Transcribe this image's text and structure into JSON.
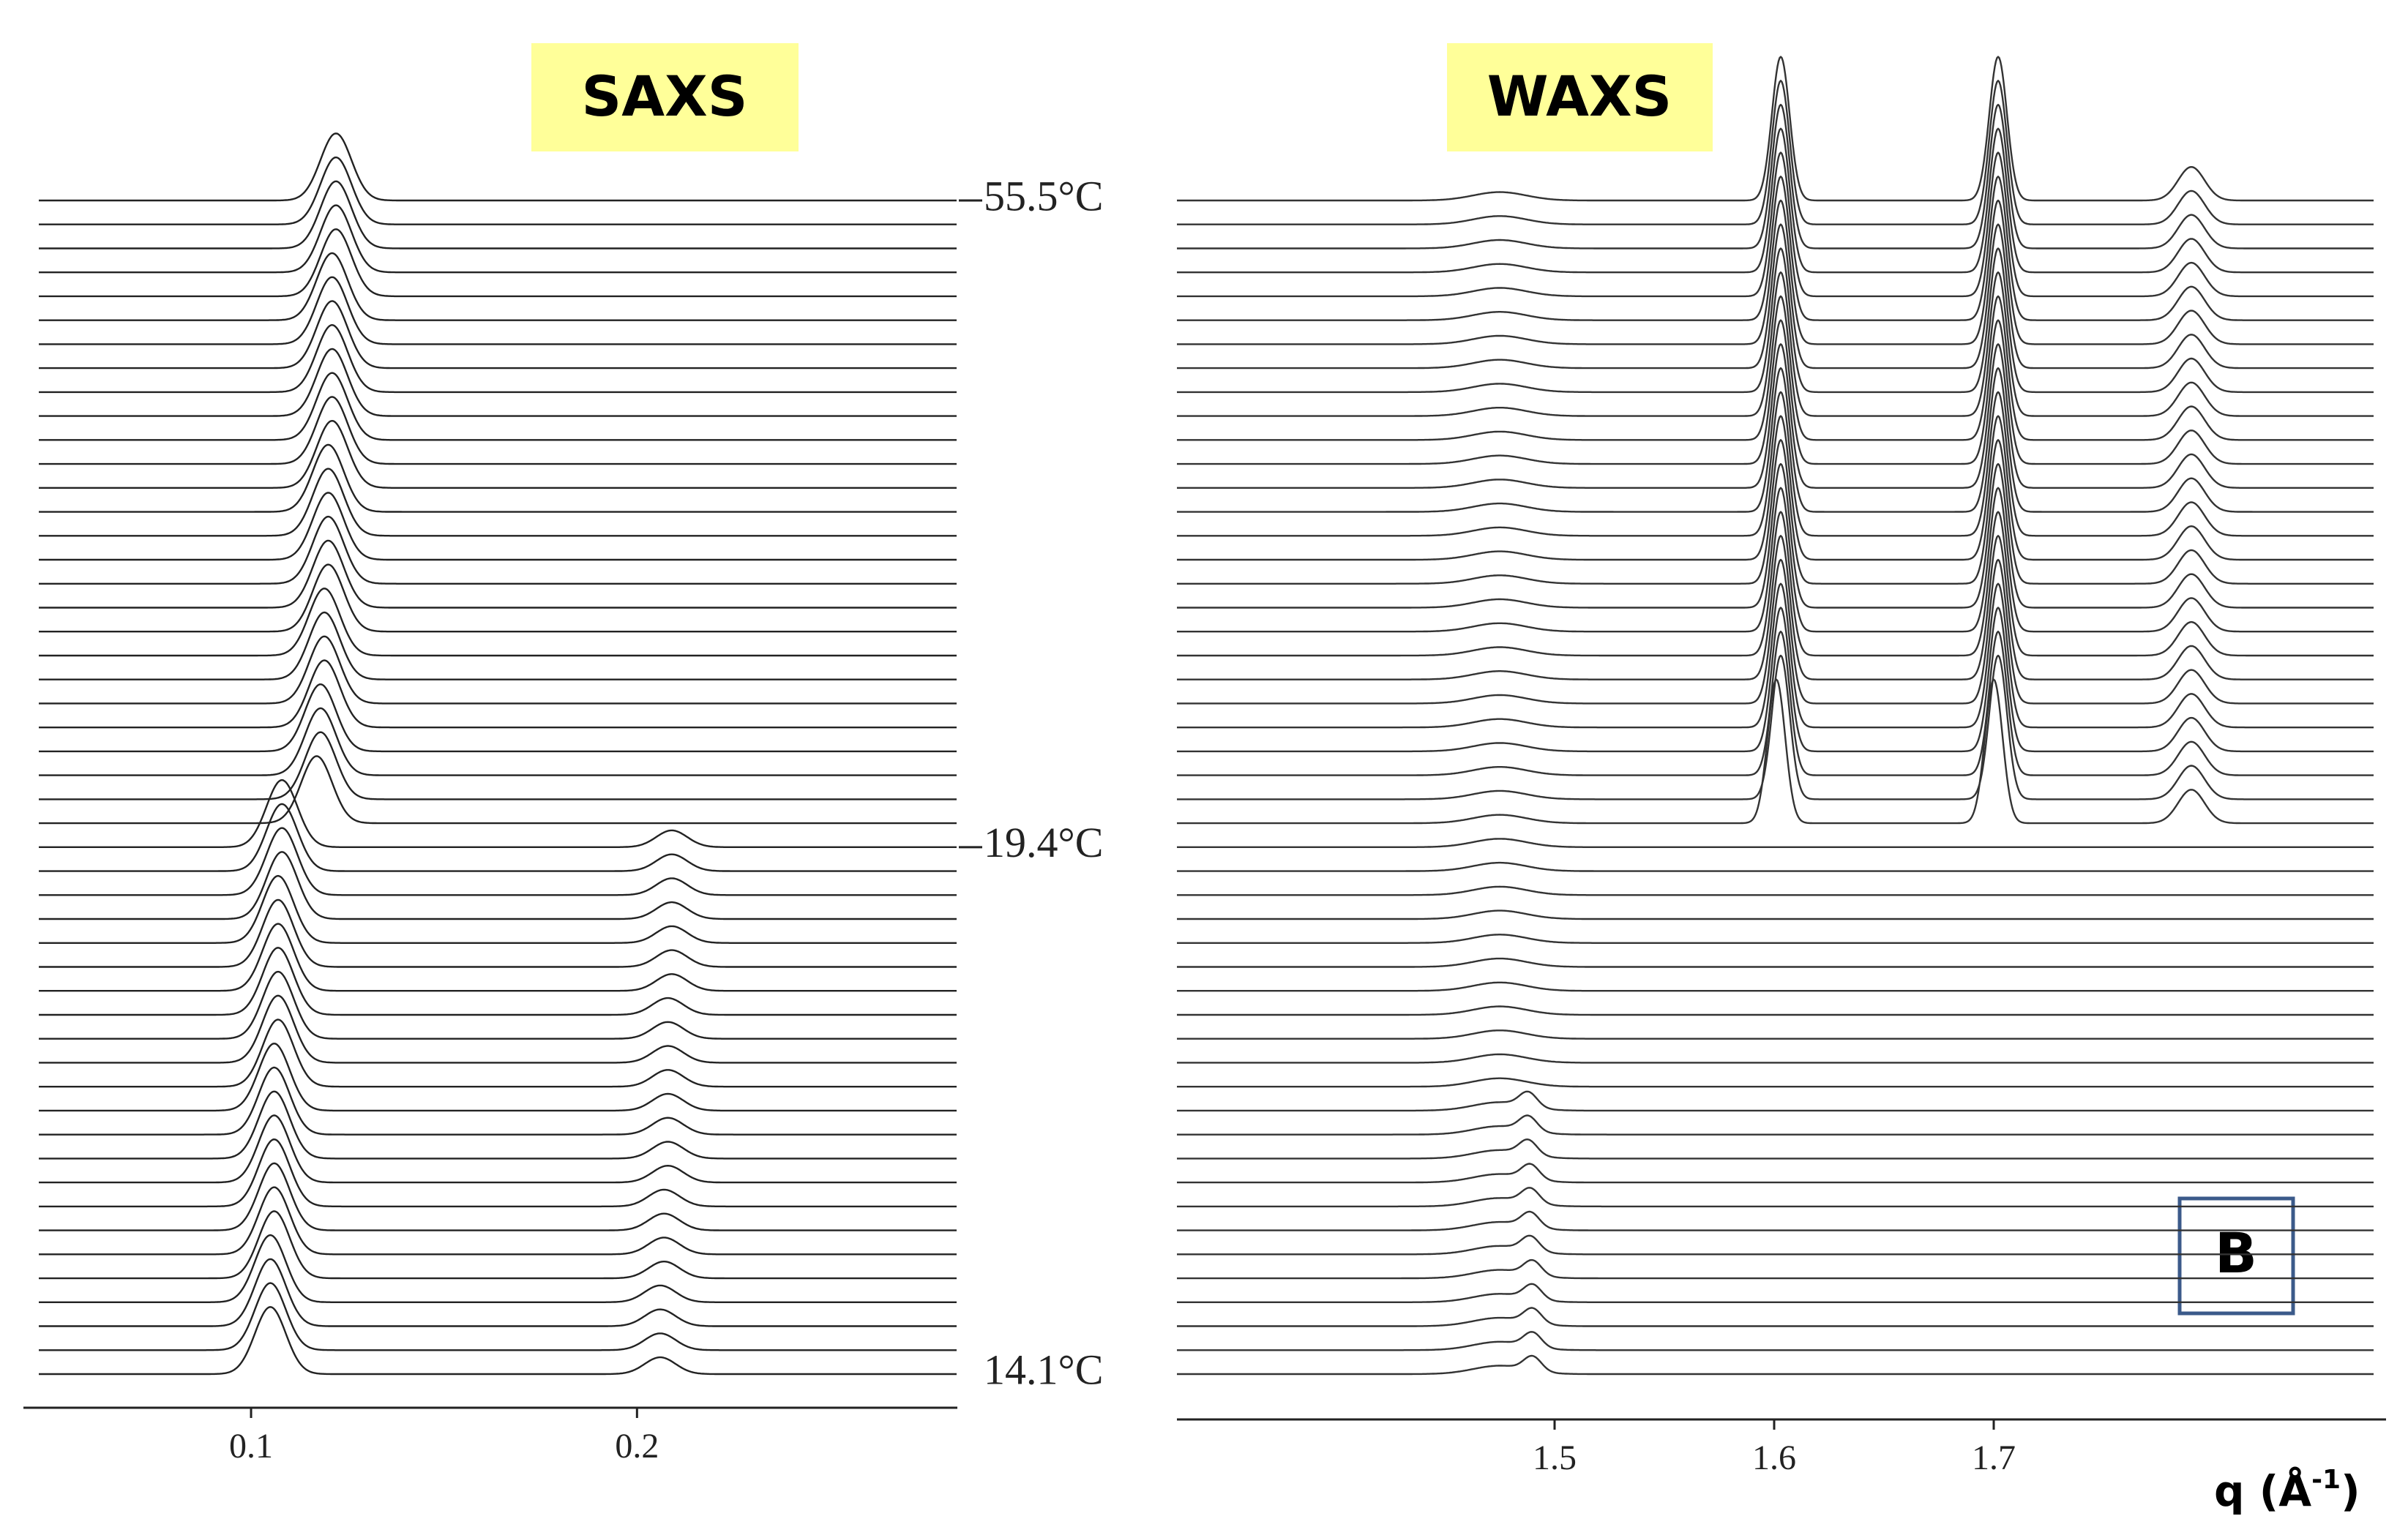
{
  "chart_data": [
    {
      "type": "waterfall",
      "title": "SAXS",
      "xlim": [
        0.045,
        0.283
      ],
      "xticks": [
        0.1,
        0.2
      ],
      "annotations": [
        {
          "text": "55.5°C",
          "trace": 0
        },
        {
          "text": "19.4°C",
          "trace": 27
        },
        {
          "text": "14.1°C",
          "trace": 49
        }
      ],
      "series": [
        {
          "color": "#222222",
          "width": 0.004,
          "height": 2.8,
          "values": [
            0.122,
            0.122,
            0.122,
            0.122,
            0.122,
            0.121,
            0.121,
            0.121,
            0.121,
            0.121,
            0.121,
            0.121,
            0.121,
            0.12,
            0.12,
            0.12,
            0.12,
            0.12,
            0.12,
            0.119,
            0.119,
            0.119,
            0.119,
            0.118,
            0.118,
            0.118,
            0.117,
            0.108,
            0.108,
            0.108,
            0.108,
            0.107,
            0.107,
            0.107,
            0.107,
            0.107,
            0.107,
            0.107,
            0.106,
            0.106,
            0.106,
            0.106,
            0.106,
            0.106,
            0.106,
            0.106,
            0.105,
            0.105,
            0.105,
            0.105
          ]
        },
        {
          "color": "#222222",
          "width": 0.004,
          "height": 0.7,
          "values": [
            null,
            null,
            null,
            null,
            null,
            null,
            null,
            null,
            null,
            null,
            null,
            null,
            null,
            null,
            null,
            null,
            null,
            null,
            null,
            null,
            null,
            null,
            null,
            null,
            null,
            null,
            null,
            0.209,
            0.209,
            0.209,
            0.209,
            0.209,
            0.209,
            0.209,
            0.208,
            0.208,
            0.208,
            0.208,
            0.208,
            0.208,
            0.208,
            0.208,
            0.207,
            0.207,
            0.207,
            0.207,
            0.206,
            0.206,
            0.206,
            0.206
          ]
        }
      ]
    },
    {
      "type": "waterfall",
      "title": "WAXS",
      "xlim": [
        1.328,
        1.873
      ],
      "xticks": [
        1.5,
        1.6,
        1.7
      ],
      "xlabel": [
        "q (Å",
        "-1",
        ")"
      ],
      "panel_label": "B",
      "series": [
        {
          "color": "#333333",
          "width": 0.012,
          "height": 0.35,
          "values": [
            1.475,
            1.475,
            1.475,
            1.475,
            1.475,
            1.475,
            1.475,
            1.475,
            1.475,
            1.475,
            1.475,
            1.475,
            1.475,
            1.475,
            1.475,
            1.475,
            1.475,
            1.475,
            1.475,
            1.475,
            1.475,
            1.475,
            1.475,
            1.475,
            1.475,
            1.475,
            1.475,
            1.475,
            1.475,
            1.475,
            1.475,
            1.475,
            1.475,
            1.475,
            1.475,
            1.475,
            1.475,
            1.475,
            1.475,
            1.475,
            1.475,
            1.475,
            1.475,
            1.475,
            1.475,
            1.475,
            1.475,
            1.475,
            1.475,
            1.475
          ]
        },
        {
          "color": "#222222",
          "width": 0.004,
          "height": 6,
          "values": [
            1.603,
            1.603,
            1.603,
            1.603,
            1.603,
            1.603,
            1.603,
            1.603,
            1.603,
            1.603,
            1.603,
            1.603,
            1.603,
            1.603,
            1.603,
            1.603,
            1.603,
            1.603,
            1.603,
            1.603,
            1.603,
            1.603,
            1.603,
            1.603,
            1.603,
            1.603,
            1.601,
            null,
            null,
            null,
            null,
            null,
            null,
            null,
            null,
            null,
            null,
            null,
            null,
            null,
            null,
            null,
            null,
            null,
            null,
            null,
            null,
            null,
            null,
            null
          ]
        },
        {
          "color": "#222222",
          "width": 0.004,
          "height": 6,
          "values": [
            1.702,
            1.702,
            1.702,
            1.702,
            1.702,
            1.702,
            1.702,
            1.702,
            1.702,
            1.702,
            1.702,
            1.702,
            1.702,
            1.702,
            1.702,
            1.702,
            1.702,
            1.702,
            1.702,
            1.702,
            1.702,
            1.702,
            1.702,
            1.702,
            1.702,
            1.702,
            1.7,
            null,
            null,
            null,
            null,
            null,
            null,
            null,
            null,
            null,
            null,
            null,
            null,
            null,
            null,
            null,
            null,
            null,
            null,
            null,
            null,
            null,
            null,
            null
          ]
        },
        {
          "color": "#222222",
          "width": 0.006,
          "height": 1.4,
          "values": [
            1.79,
            1.79,
            1.79,
            1.79,
            1.79,
            1.79,
            1.79,
            1.79,
            1.79,
            1.79,
            1.79,
            1.79,
            1.79,
            1.79,
            1.79,
            1.79,
            1.79,
            1.79,
            1.79,
            1.79,
            1.79,
            1.79,
            1.79,
            1.79,
            1.79,
            1.79,
            1.79,
            null,
            null,
            null,
            null,
            null,
            null,
            null,
            null,
            null,
            null,
            null,
            null,
            null,
            null,
            null,
            null,
            null,
            null,
            null,
            null,
            null,
            null,
            null
          ]
        },
        {
          "color": "#222222",
          "width": 0.004,
          "height": 0.6,
          "values": [
            null,
            null,
            null,
            null,
            null,
            null,
            null,
            null,
            null,
            null,
            null,
            null,
            null,
            null,
            null,
            null,
            null,
            null,
            null,
            null,
            null,
            null,
            null,
            null,
            null,
            null,
            null,
            null,
            null,
            null,
            null,
            null,
            null,
            null,
            null,
            null,
            null,
            null,
            1.488,
            1.488,
            1.488,
            1.489,
            1.489,
            1.489,
            1.489,
            1.49,
            1.49,
            1.49,
            1.49,
            1.49
          ]
        }
      ]
    }
  ]
}
